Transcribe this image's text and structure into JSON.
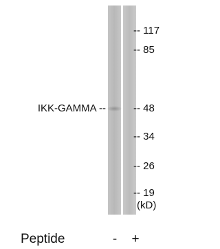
{
  "blot": {
    "target_label": "IKK-GAMMA --",
    "markers": [
      "-- 117",
      "-- 85",
      "-- 48",
      "-- 34",
      "-- 26",
      "-- 19"
    ],
    "unit": "(kD)",
    "footer": {
      "label": "Peptide",
      "lanes": [
        "-",
        "+"
      ]
    }
  }
}
